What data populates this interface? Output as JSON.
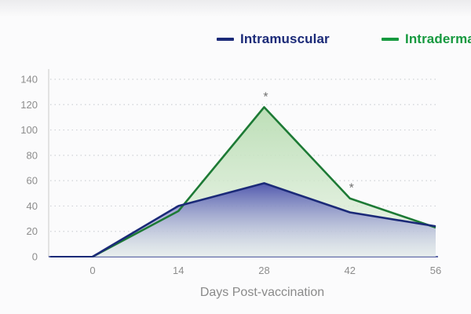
{
  "chart_data": {
    "type": "area",
    "x": [
      0,
      14,
      28,
      42,
      56
    ],
    "series": [
      {
        "name": "Intramuscular",
        "values": [
          0,
          40,
          58,
          35,
          24
        ],
        "color": "#1b2a78"
      },
      {
        "name": "Intradermal",
        "values": [
          0,
          36,
          118,
          46,
          23
        ],
        "color": "#16993f"
      }
    ],
    "xlabel": "Days Post-vaccination",
    "ylabel": "",
    "title": "",
    "ylim": [
      0,
      140
    ],
    "y_ticks": [
      0,
      20,
      40,
      60,
      80,
      100,
      120,
      140
    ],
    "x_ticks": [
      0,
      14,
      28,
      42,
      56
    ],
    "grid": "horizontal dotted",
    "legend": "top-right",
    "significance_marks": [
      {
        "x": 28,
        "series": "Intradermal",
        "label": "*"
      },
      {
        "x": 42,
        "series": "Intradermal",
        "label": "*"
      }
    ]
  },
  "legend": {
    "items": [
      {
        "label": "Intramuscular",
        "color": "#1b2a78"
      },
      {
        "label": "Intradermal",
        "color": "#16993f"
      }
    ]
  }
}
